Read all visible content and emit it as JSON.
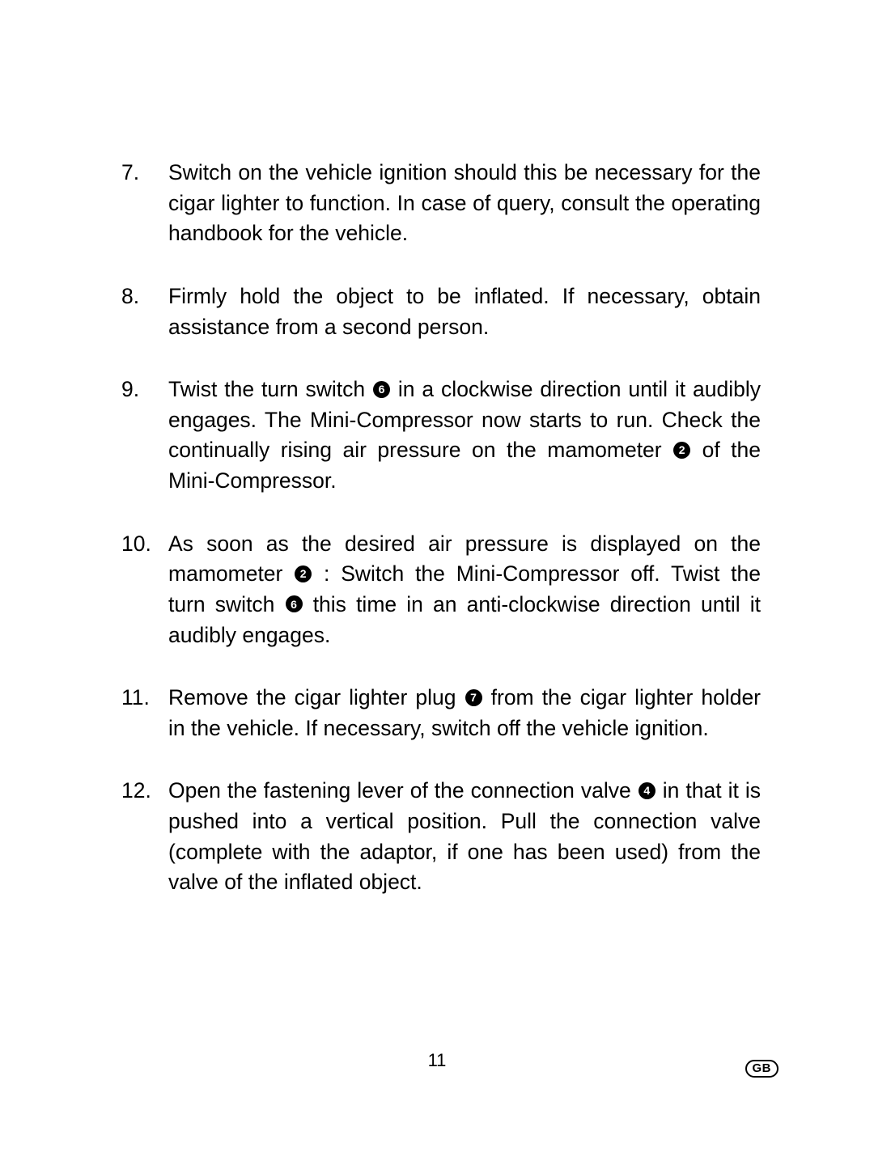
{
  "page": {
    "number": "11",
    "language_badge": "GB"
  },
  "refs": {
    "r2": "2",
    "r4": "4",
    "r6": "6",
    "r7": "7"
  },
  "steps": [
    {
      "num": "7.",
      "segments": [
        {
          "t": "text",
          "v": "Switch on the vehicle ignition should this be necessary for the cigar lighter to function. In case of query, consult the operating handbook for the vehicle."
        }
      ]
    },
    {
      "num": "8.",
      "segments": [
        {
          "t": "text",
          "v": "Firmly hold the object to be inflated. If necessary, obtain assistance from a second person."
        }
      ]
    },
    {
      "num": "9.",
      "segments": [
        {
          "t": "text",
          "v": "Twist the turn switch "
        },
        {
          "t": "ref",
          "v": "r6"
        },
        {
          "t": "text",
          "v": " in a clockwise direction until it audibly engages. The Mini-Compressor now starts to run. Check the continually rising air pressure on the mamometer "
        },
        {
          "t": "ref",
          "v": "r2"
        },
        {
          "t": "text",
          "v": " of the Mini-Compressor."
        }
      ]
    },
    {
      "num": "10.",
      "segments": [
        {
          "t": "text",
          "v": "As soon as the desired air pressure is displayed on the mamometer "
        },
        {
          "t": "ref",
          "v": "r2"
        },
        {
          "t": "text",
          "v": " : Switch the Mini-Compressor off. Twist the turn switch "
        },
        {
          "t": "ref",
          "v": "r6"
        },
        {
          "t": "text",
          "v": " this time in an anti-clockwise direction until it audibly engages."
        }
      ]
    },
    {
      "num": "11.",
      "segments": [
        {
          "t": "text",
          "v": "Remove the cigar lighter plug "
        },
        {
          "t": "ref",
          "v": "r7"
        },
        {
          "t": "text",
          "v": " from the cigar lighter holder in the vehicle. If necessary, switch off the vehicle ignition."
        }
      ]
    },
    {
      "num": "12.",
      "segments": [
        {
          "t": "text",
          "v": "Open the fastening lever of the connection valve "
        },
        {
          "t": "ref",
          "v": "r4"
        },
        {
          "t": "text",
          "v": " in that it is pushed into a vertical position. Pull the connection valve (complete with the adaptor, if one has been used) from the valve of the inflated object."
        }
      ]
    }
  ]
}
